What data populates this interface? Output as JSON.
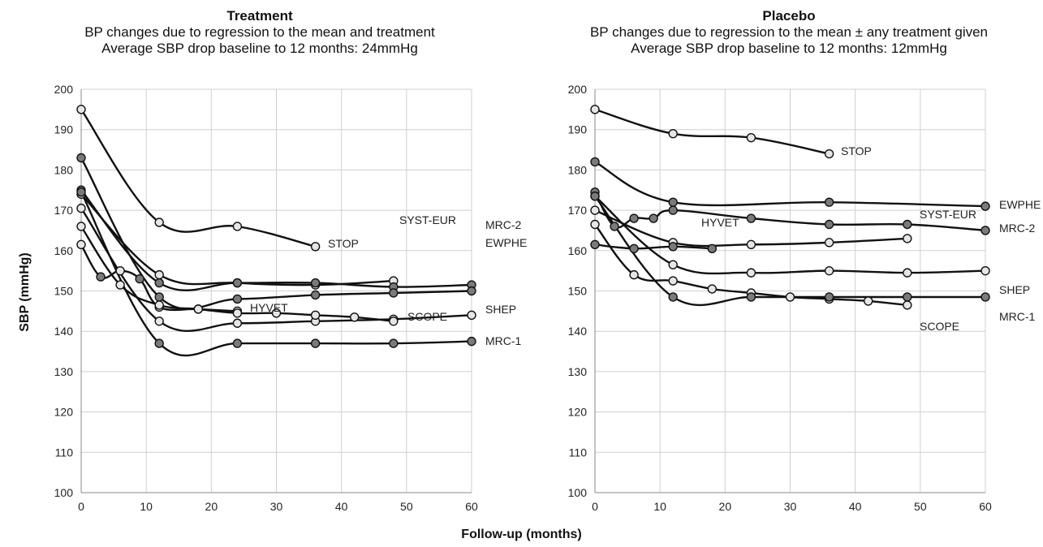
{
  "figure": {
    "ylabel": "SBP (mmHg)",
    "xlabel": "Follow-up (months)"
  },
  "chart_data": [
    {
      "type": "line",
      "title": "Treatment",
      "subtitle": "BP changes due to regression to the mean and treatment",
      "subtitle2": "Average SBP drop baseline to 12 months: 24mmHg",
      "xlim": [
        0,
        60
      ],
      "ylim": [
        100,
        200
      ],
      "xticks": [
        0,
        10,
        20,
        30,
        40,
        50,
        60
      ],
      "yticks": [
        100,
        110,
        120,
        130,
        140,
        150,
        160,
        170,
        180,
        190,
        200
      ],
      "grid": true,
      "series": [
        {
          "name": "STOP",
          "marker": "open",
          "x": [
            0,
            12,
            24,
            36
          ],
          "y": [
            195,
            167,
            166,
            161
          ]
        },
        {
          "name": "SYST-EUR",
          "marker": "open",
          "x": [
            0,
            12,
            24,
            36,
            48
          ],
          "y": [
            174,
            154,
            152,
            151.5,
            152.5
          ]
        },
        {
          "name": "MRC-2",
          "marker": "filled",
          "x": [
            0,
            12,
            24,
            36,
            48,
            60
          ],
          "y": [
            175,
            152,
            152,
            152,
            151,
            151.5
          ]
        },
        {
          "name": "EWPHE",
          "marker": "filled",
          "x": [
            0,
            12,
            24,
            36,
            48,
            60
          ],
          "y": [
            183,
            148.5,
            148,
            149,
            149.5,
            150
          ]
        },
        {
          "name": "HYVET",
          "marker": "mixed",
          "x": [
            0,
            3,
            6,
            9,
            12,
            18,
            24
          ],
          "y": [
            161.5,
            153.5,
            155,
            153,
            146,
            145.5,
            145
          ]
        },
        {
          "name": "SHEP",
          "marker": "open",
          "x": [
            0,
            12,
            24,
            36,
            48,
            60
          ],
          "y": [
            170.5,
            142.5,
            142,
            142.5,
            143,
            144
          ]
        },
        {
          "name": "SCOPE",
          "marker": "open",
          "x": [
            0,
            6,
            12,
            18,
            24,
            30,
            36,
            42,
            48
          ],
          "y": [
            166,
            151.5,
            146.5,
            145.5,
            144.5,
            144.5,
            144,
            143.5,
            142.5
          ]
        },
        {
          "name": "MRC-1",
          "marker": "filled",
          "x": [
            0,
            12,
            24,
            36,
            48,
            60
          ],
          "y": [
            174.5,
            137,
            137,
            137,
            137,
            137.5
          ]
        }
      ]
    },
    {
      "type": "line",
      "title": "Placebo",
      "subtitle": "BP changes due to regression to the mean ± any treatment given",
      "subtitle2": "Average SBP drop baseline to 12 months: 12mmHg",
      "xlim": [
        0,
        60
      ],
      "ylim": [
        100,
        200
      ],
      "xticks": [
        0,
        10,
        20,
        30,
        40,
        50,
        60
      ],
      "yticks": [
        100,
        110,
        120,
        130,
        140,
        150,
        160,
        170,
        180,
        190,
        200
      ],
      "grid": true,
      "series": [
        {
          "name": "STOP",
          "marker": "open",
          "x": [
            0,
            12,
            24,
            36
          ],
          "y": [
            195,
            189,
            188,
            184
          ]
        },
        {
          "name": "EWPHE",
          "marker": "filled",
          "x": [
            0,
            12,
            36,
            60
          ],
          "y": [
            182,
            172,
            172,
            171
          ]
        },
        {
          "name": "MRC-2",
          "marker": "filled",
          "x": [
            0,
            3,
            6,
            9,
            12,
            24,
            36,
            48,
            60
          ],
          "y": [
            174.5,
            166,
            168,
            168,
            170,
            168,
            166.5,
            166.5,
            165
          ]
        },
        {
          "name": "SYST-EUR",
          "marker": "open",
          "x": [
            0,
            12,
            24,
            36,
            48
          ],
          "y": [
            170,
            162,
            161.5,
            162,
            163
          ]
        },
        {
          "name": "HYVET",
          "marker": "filled",
          "x": [
            0,
            6,
            12,
            18
          ],
          "y": [
            161.5,
            160.5,
            161,
            160.5
          ]
        },
        {
          "name": "SHEP",
          "marker": "open",
          "x": [
            0,
            12,
            24,
            36,
            48,
            60
          ],
          "y": [
            173.5,
            156.5,
            154.5,
            155,
            154.5,
            155
          ]
        },
        {
          "name": "SCOPE",
          "marker": "open",
          "x": [
            0,
            6,
            12,
            18,
            24,
            30,
            36,
            42,
            48
          ],
          "y": [
            166.5,
            154,
            152.5,
            150.5,
            149.5,
            148.5,
            148,
            147.5,
            146.5
          ]
        },
        {
          "name": "MRC-1",
          "marker": "filled",
          "x": [
            0,
            12,
            24,
            36,
            48,
            60
          ],
          "y": [
            173.5,
            148.5,
            148.5,
            148.5,
            148.5,
            148.5
          ]
        }
      ]
    }
  ],
  "colors": {
    "line": "#111111",
    "grid": "#cfcfcf",
    "marker_filled": "#7a7a7a",
    "marker_open": "#e6e6e6"
  }
}
